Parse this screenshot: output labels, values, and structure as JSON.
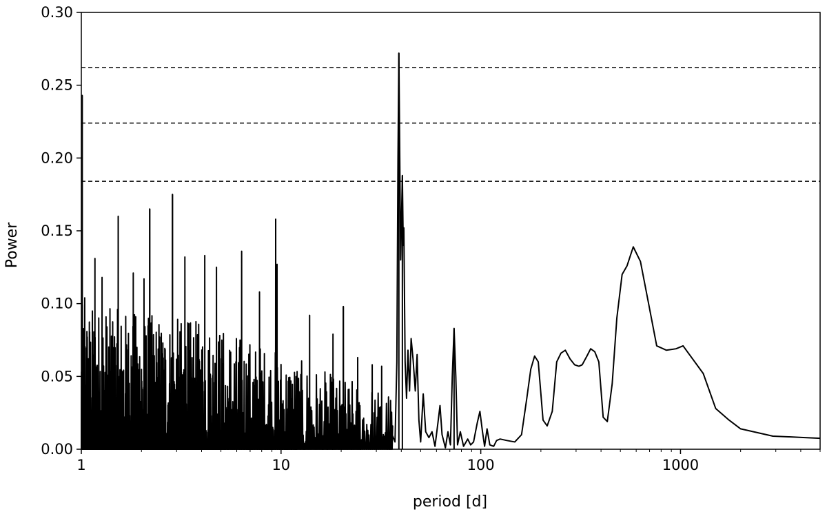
{
  "chart_data": {
    "type": "line",
    "title": "",
    "xlabel": "period [d]",
    "ylabel": "Power",
    "xscale": "log",
    "xlim": [
      1,
      5000
    ],
    "ylim": [
      0,
      0.3
    ],
    "grid": false,
    "x_ticks": [
      {
        "value": 1,
        "label": "1"
      },
      {
        "value": 10,
        "label": "10"
      },
      {
        "value": 100,
        "label": "100"
      },
      {
        "value": 1000,
        "label": "1000"
      }
    ],
    "y_ticks": [
      {
        "value": 0.0,
        "label": "0.00"
      },
      {
        "value": 0.05,
        "label": "0.05"
      },
      {
        "value": 0.1,
        "label": "0.10"
      },
      {
        "value": 0.15,
        "label": "0.15"
      },
      {
        "value": 0.2,
        "label": "0.20"
      },
      {
        "value": 0.25,
        "label": "0.25"
      },
      {
        "value": 0.3,
        "label": "0.30"
      }
    ],
    "hlines": [
      0.184,
      0.224,
      0.262
    ],
    "notable_peaks": [
      {
        "x": 1.01,
        "y": 0.243
      },
      {
        "x": 1.53,
        "y": 0.16
      },
      {
        "x": 2.2,
        "y": 0.165
      },
      {
        "x": 2.86,
        "y": 0.175
      },
      {
        "x": 9.4,
        "y": 0.158
      },
      {
        "x": 20.5,
        "y": 0.098
      },
      {
        "x": 38.9,
        "y": 0.272
      },
      {
        "x": 40.5,
        "y": 0.188
      },
      {
        "x": 73.5,
        "y": 0.083
      }
    ],
    "series": [
      {
        "x": [
          125,
          135,
          148,
          160,
          170,
          178,
          186,
          194,
          205,
          215,
          228,
          240,
          252,
          265,
          280,
          295,
          310,
          322,
          340,
          355,
          372,
          390,
          410,
          430,
          455,
          480,
          510,
          540,
          580,
          630,
          690,
          760,
          850,
          950,
          1030,
          1150,
          1300,
          1500,
          1750,
          2000,
          2500,
          2900,
          3500,
          4200,
          5000
        ],
        "y": [
          0.007,
          0.006,
          0.005,
          0.01,
          0.035,
          0.055,
          0.064,
          0.06,
          0.02,
          0.016,
          0.026,
          0.06,
          0.066,
          0.068,
          0.062,
          0.058,
          0.057,
          0.058,
          0.064,
          0.069,
          0.067,
          0.06,
          0.022,
          0.019,
          0.045,
          0.09,
          0.12,
          0.126,
          0.139,
          0.129,
          0.101,
          0.071,
          0.068,
          0.069,
          0.071,
          0.062,
          0.052,
          0.028,
          0.02,
          0.014,
          0.011,
          0.009,
          0.0085,
          0.008,
          0.0075
        ]
      }
    ]
  }
}
